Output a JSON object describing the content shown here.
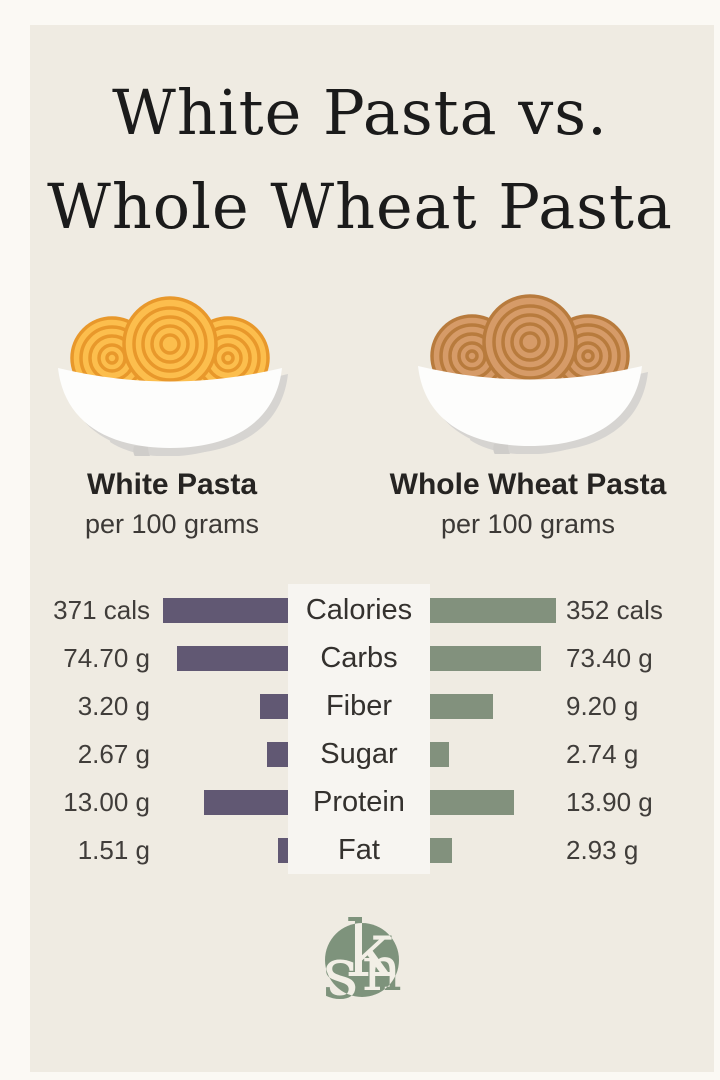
{
  "title": {
    "line1": "White Pasta vs.",
    "line2": "Whole Wheat Pasta"
  },
  "columns": {
    "left": {
      "heading": "White Pasta",
      "subheading": "per 100 grams"
    },
    "right": {
      "heading": "Whole Wheat Pasta",
      "subheading": "per 100 grams"
    }
  },
  "chart_data": {
    "type": "bar",
    "orientation": "diverging-horizontal",
    "categories": [
      "Calories",
      "Carbs",
      "Fiber",
      "Sugar",
      "Protein",
      "Fat"
    ],
    "series": [
      {
        "name": "White Pasta",
        "color": "#615873",
        "values": [
          371,
          74.7,
          3.2,
          2.67,
          13.0,
          1.51
        ],
        "labels": [
          "371 cals",
          "74.70 g",
          "3.20 g",
          "2.67 g",
          "13.00 g",
          "1.51 g"
        ]
      },
      {
        "name": "Whole Wheat Pasta",
        "color": "#82917D",
        "values": [
          352,
          73.4,
          9.2,
          2.74,
          13.9,
          2.93
        ],
        "labels": [
          "352 cals",
          "73.40 g",
          "9.20 g",
          "2.74 g",
          "13.90 g",
          "2.93 g"
        ]
      }
    ],
    "units": {
      "calories": "cals",
      "grams": "g"
    },
    "grid": false,
    "legend_position": "none"
  },
  "chart": {
    "rows": [
      {
        "label": "Calories",
        "left_value": "371 cals",
        "right_value": "352 cals",
        "left_bar": 125,
        "right_bar": 126
      },
      {
        "label": "Carbs",
        "left_value": "74.70 g",
        "right_value": "73.40 g",
        "left_bar": 111,
        "right_bar": 111
      },
      {
        "label": "Fiber",
        "left_value": "3.20 g",
        "right_value": "9.20 g",
        "left_bar": 28,
        "right_bar": 63
      },
      {
        "label": "Sugar",
        "left_value": "2.67 g",
        "right_value": "2.74 g",
        "left_bar": 21,
        "right_bar": 19
      },
      {
        "label": "Protein",
        "left_value": "13.00 g",
        "right_value": "13.90 g",
        "left_bar": 84,
        "right_bar": 84
      },
      {
        "label": "Fat",
        "left_value": "1.51 g",
        "right_value": "2.93 g",
        "left_bar": 10,
        "right_bar": 22
      }
    ]
  },
  "logo": {
    "letters": {
      "l1": "s",
      "l2": "k",
      "l3": "n"
    }
  },
  "colors": {
    "frame": "#FBF9F4",
    "background": "#EFEBE2",
    "center_panel": "#F5F2EA",
    "bar_left": "#615873",
    "bar_right": "#82917D",
    "title_text": "#1B1B1B",
    "body_text": "#3C3936",
    "white_pasta": "#FCBE4D",
    "white_pasta_strand": "#E8982B",
    "wheat_pasta": "#D69B68",
    "wheat_pasta_strand": "#B87B3D",
    "logo_green": "#7E937C"
  }
}
